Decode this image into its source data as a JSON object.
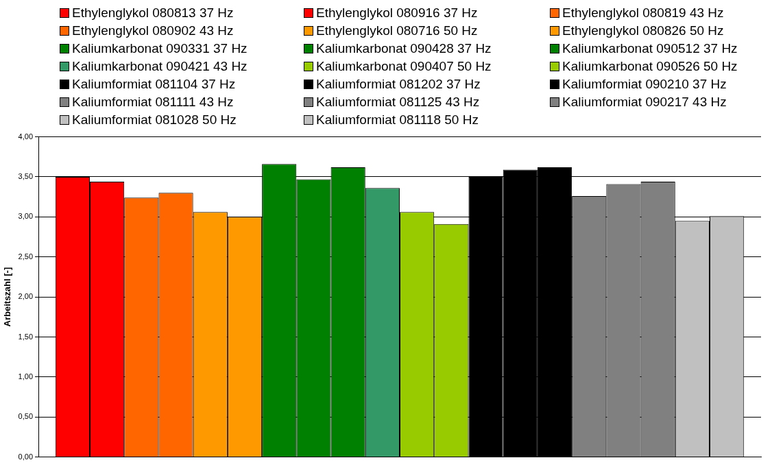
{
  "chart_data": {
    "type": "bar",
    "ylabel": "Arbeitszahl [-]",
    "categories": [
      null
    ],
    "ylim": [
      0,
      4
    ],
    "yticks": [
      {
        "value": 0,
        "label": "0,00"
      },
      {
        "value": 0.5,
        "label": "0,50"
      },
      {
        "value": 1,
        "label": "1,00"
      },
      {
        "value": 1.5,
        "label": "1,50"
      },
      {
        "value": 2,
        "label": "2,00"
      },
      {
        "value": 2.5,
        "label": "2,50"
      },
      {
        "value": 3,
        "label": "3,00"
      },
      {
        "value": 3.5,
        "label": "3,50"
      },
      {
        "value": 4,
        "label": "4,00"
      }
    ],
    "grid": "y",
    "legend": "top",
    "series": [
      {
        "name": "Ethylenglykol 080813 37 Hz",
        "color": "#ff0000",
        "values": [
          3.5
        ]
      },
      {
        "name": "Ethylenglykol 080916 37 Hz",
        "color": "#ff0000",
        "values": [
          3.44
        ]
      },
      {
        "name": "Ethylenglykol 080819 43 Hz",
        "color": "#ff6600",
        "values": [
          3.24
        ]
      },
      {
        "name": "Ethylenglykol 080902 43 Hz",
        "color": "#ff6600",
        "values": [
          3.3
        ]
      },
      {
        "name": "Ethylenglykol 080716 50 Hz",
        "color": "#ff9900",
        "values": [
          3.06
        ]
      },
      {
        "name": "Ethylenglykol 080826 50 Hz",
        "color": "#ff9900",
        "values": [
          3.0
        ]
      },
      {
        "name": "Kaliumkarbonat 090331 37 Hz",
        "color": "#008000",
        "values": [
          3.66
        ]
      },
      {
        "name": "Kaliumkarbonat 090428 37 Hz",
        "color": "#008000",
        "values": [
          3.47
        ]
      },
      {
        "name": "Kaliumkarbonat 090512 37 Hz",
        "color": "#008000",
        "values": [
          3.62
        ]
      },
      {
        "name": "Kaliumkarbonat 090421 43 Hz",
        "color": "#339966",
        "values": [
          3.36
        ]
      },
      {
        "name": "Kaliumkarbonat 090407 50 Hz",
        "color": "#99cc00",
        "values": [
          3.06
        ]
      },
      {
        "name": "Kaliumkarbonat 090526 50 Hz",
        "color": "#99cc00",
        "values": [
          2.91
        ]
      },
      {
        "name": "Kaliumformiat 081104 37 Hz",
        "color": "#000000",
        "values": [
          3.5
        ]
      },
      {
        "name": "Kaliumformiat 081202 37 Hz",
        "color": "#000000",
        "values": [
          3.59
        ]
      },
      {
        "name": "Kaliumformiat 090210 37 Hz",
        "color": "#000000",
        "values": [
          3.62
        ]
      },
      {
        "name": "Kaliumformiat 081111 43 Hz",
        "color": "#808080",
        "values": [
          3.26
        ]
      },
      {
        "name": "Kaliumformiat 081125 43 Hz",
        "color": "#808080",
        "values": [
          3.41
        ]
      },
      {
        "name": "Kaliumformiat 090217 43 Hz",
        "color": "#808080",
        "values": [
          3.44
        ]
      },
      {
        "name": "Kaliumformiat 081028 50 Hz",
        "color": "#c0c0c0",
        "values": [
          2.95
        ]
      },
      {
        "name": "Kaliumformiat 081118 50 Hz",
        "color": "#c0c0c0",
        "values": [
          3.01
        ]
      }
    ]
  }
}
